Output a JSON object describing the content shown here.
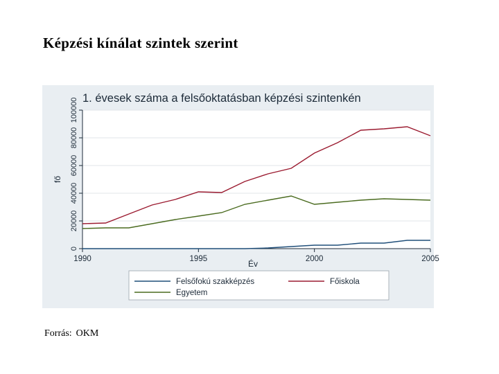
{
  "slide": {
    "title": "Képzési kínálat szintek szerint",
    "source_label": "Forrás:",
    "source_value": "OKM"
  },
  "colors": {
    "background": "#e9eef2",
    "felsofoku": "#1f4e79",
    "foiskola": "#9b1b30",
    "egyetem": "#4a6b1f"
  },
  "chart_data": {
    "type": "line",
    "title": "1. évesek száma a felsőoktatásban képzési szintenkén",
    "xlabel": "Év",
    "ylabel": "fő",
    "xlim": [
      1990,
      2005
    ],
    "ylim": [
      0,
      100000
    ],
    "xticks": [
      1990,
      1995,
      2000,
      2005
    ],
    "yticks": [
      0,
      20000,
      40000,
      60000,
      80000,
      100000
    ],
    "grid": true,
    "legend_position": "bottom",
    "x": [
      1990,
      1991,
      1992,
      1993,
      1994,
      1995,
      1996,
      1997,
      1998,
      1999,
      2000,
      2001,
      2002,
      2003,
      2004,
      2005
    ],
    "series": [
      {
        "name": "Felsőfokú szakképzés",
        "color": "#1f4e79",
        "values": [
          0,
          0,
          0,
          0,
          0,
          0,
          0,
          0,
          500,
          1500,
          2500,
          2500,
          4000,
          4000,
          6000,
          6000
        ]
      },
      {
        "name": "Főiskola",
        "color": "#9b1b30",
        "values": [
          18000,
          18500,
          25000,
          31500,
          35500,
          41000,
          40500,
          48500,
          54000,
          58000,
          69000,
          76500,
          85500,
          86500,
          88000,
          81500
        ]
      },
      {
        "name": "Egyetem",
        "color": "#4a6b1f",
        "values": [
          14500,
          15000,
          15000,
          18000,
          21000,
          23500,
          26000,
          32000,
          35000,
          38000,
          32000,
          33500,
          35000,
          36000,
          35500,
          35000
        ]
      }
    ]
  }
}
